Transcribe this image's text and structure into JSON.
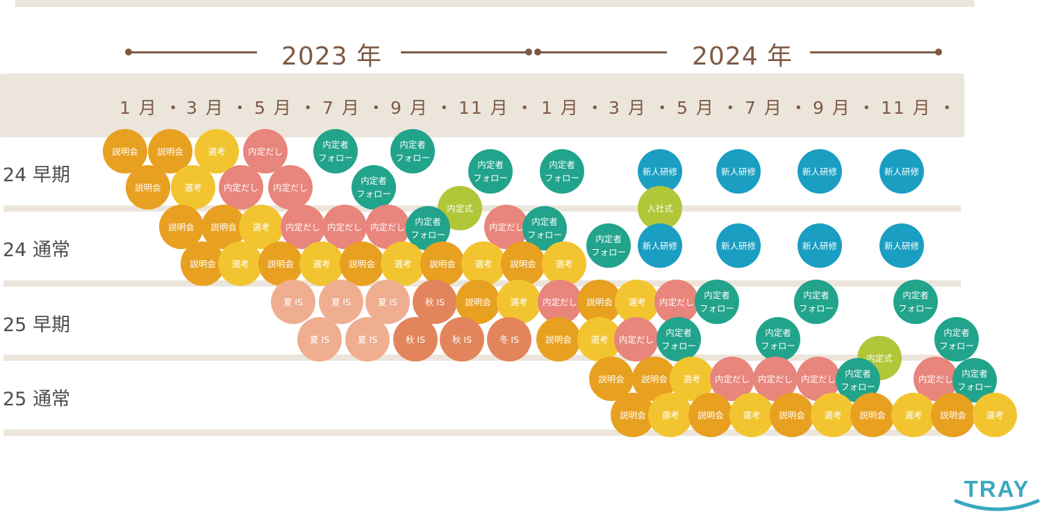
{
  "years": [
    "2023 年",
    "2024 年"
  ],
  "months": [
    "1 月 ・",
    "3 月 ・",
    "5 月 ・",
    "7 月 ・",
    "9 月 ・",
    "11 月 ・",
    "1 月 ・",
    "3 月 ・",
    "5 月 ・",
    "7 月 ・",
    "9 月 ・",
    "11 月 ・"
  ],
  "rows": [
    "24 早期",
    "24 通常",
    "25 早期",
    "25 通常"
  ],
  "logo": {
    "text": "TRAY",
    "color": "#3aa8c1"
  },
  "colors": {
    "setsumeikai": "#e8a020",
    "senko": "#f2c530",
    "naitei_dashi": "#e8857c",
    "follow": "#22a38c",
    "shikisiki": "#b2c63a",
    "kenshu": "#1a9ec2",
    "is_light": "#efae90",
    "is_dark": "#e3855c"
  },
  "bubbles": [
    {
      "t": "説明会",
      "c": "setsumeikai"
    },
    {
      "t": "説明会",
      "c": "setsumeikai"
    },
    {
      "t": "選考",
      "c": "senko"
    },
    {
      "t": "内定だし",
      "c": "naitei_dashi"
    },
    {
      "t": "説明会",
      "c": "setsumeikai"
    },
    {
      "t": "選考",
      "c": "senko"
    },
    {
      "t": "内定だし",
      "c": "naitei_dashi"
    },
    {
      "t": "内定だし",
      "c": "naitei_dashi"
    },
    {
      "t": "内定者\nフォロー",
      "c": "follow"
    },
    {
      "t": "内定者\nフォロー",
      "c": "follow"
    },
    {
      "t": "内定者\nフォロー",
      "c": "follow"
    },
    {
      "t": "内定者\nフォロー",
      "c": "follow"
    },
    {
      "t": "内定者\nフォロー",
      "c": "follow"
    },
    {
      "t": "内定式",
      "c": "shikisiki"
    },
    {
      "t": "新人研修",
      "c": "kenshu"
    },
    {
      "t": "新人研修",
      "c": "kenshu"
    },
    {
      "t": "新人研修",
      "c": "kenshu"
    },
    {
      "t": "新人研修",
      "c": "kenshu"
    },
    {
      "t": "入社式",
      "c": "shikisiki"
    },
    {
      "t": "説明会",
      "c": "setsumeikai"
    },
    {
      "t": "説明会",
      "c": "setsumeikai"
    },
    {
      "t": "選考",
      "c": "senko"
    },
    {
      "t": "内定だし",
      "c": "naitei_dashi"
    },
    {
      "t": "内定だし",
      "c": "naitei_dashi"
    },
    {
      "t": "内定だし",
      "c": "naitei_dashi"
    },
    {
      "t": "内定者\nフォロー",
      "c": "follow"
    },
    {
      "t": "内定だし",
      "c": "naitei_dashi"
    },
    {
      "t": "内定者\nフォロー",
      "c": "follow"
    },
    {
      "t": "内定者\nフォロー",
      "c": "follow"
    },
    {
      "t": "新人研修",
      "c": "kenshu"
    },
    {
      "t": "新人研修",
      "c": "kenshu"
    },
    {
      "t": "新人研修",
      "c": "kenshu"
    },
    {
      "t": "新人研修",
      "c": "kenshu"
    },
    {
      "t": "説明会",
      "c": "setsumeikai"
    },
    {
      "t": "選考",
      "c": "senko"
    },
    {
      "t": "説明会",
      "c": "setsumeikai"
    },
    {
      "t": "選考",
      "c": "senko"
    },
    {
      "t": "説明会",
      "c": "setsumeikai"
    },
    {
      "t": "選考",
      "c": "senko"
    },
    {
      "t": "説明会",
      "c": "setsumeikai"
    },
    {
      "t": "選考",
      "c": "senko"
    },
    {
      "t": "説明会",
      "c": "setsumeikai"
    },
    {
      "t": "選考",
      "c": "senko"
    },
    {
      "t": "夏 IS",
      "c": "is_light"
    },
    {
      "t": "夏 IS",
      "c": "is_light"
    },
    {
      "t": "夏 IS",
      "c": "is_light"
    },
    {
      "t": "秋 IS",
      "c": "is_dark"
    },
    {
      "t": "説明会",
      "c": "setsumeikai"
    },
    {
      "t": "選考",
      "c": "senko"
    },
    {
      "t": "内定だし",
      "c": "naitei_dashi"
    },
    {
      "t": "説明会",
      "c": "setsumeikai"
    },
    {
      "t": "選考",
      "c": "senko"
    },
    {
      "t": "内定だし",
      "c": "naitei_dashi"
    },
    {
      "t": "内定者\nフォロー",
      "c": "follow"
    },
    {
      "t": "内定者\nフォロー",
      "c": "follow"
    },
    {
      "t": "内定者\nフォロー",
      "c": "follow"
    },
    {
      "t": "夏 IS",
      "c": "is_light"
    },
    {
      "t": "夏 IS",
      "c": "is_light"
    },
    {
      "t": "秋 IS",
      "c": "is_dark"
    },
    {
      "t": "秋 IS",
      "c": "is_dark"
    },
    {
      "t": "冬 IS",
      "c": "is_dark"
    },
    {
      "t": "説明会",
      "c": "setsumeikai"
    },
    {
      "t": "選考",
      "c": "senko"
    },
    {
      "t": "内定だし",
      "c": "naitei_dashi"
    },
    {
      "t": "内定者\nフォロー",
      "c": "follow"
    },
    {
      "t": "内定者\nフォロー",
      "c": "follow"
    },
    {
      "t": "内定者\nフォロー",
      "c": "follow"
    },
    {
      "t": "内定式",
      "c": "shikisiki"
    },
    {
      "t": "説明会",
      "c": "setsumeikai"
    },
    {
      "t": "説明会",
      "c": "setsumeikai"
    },
    {
      "t": "選考",
      "c": "senko"
    },
    {
      "t": "内定だし",
      "c": "naitei_dashi"
    },
    {
      "t": "内定だし",
      "c": "naitei_dashi"
    },
    {
      "t": "内定だし",
      "c": "naitei_dashi"
    },
    {
      "t": "内定者\nフォロー",
      "c": "follow"
    },
    {
      "t": "内定だし",
      "c": "naitei_dashi"
    },
    {
      "t": "内定者\nフォロー",
      "c": "follow"
    },
    {
      "t": "説明会",
      "c": "setsumeikai"
    },
    {
      "t": "選考",
      "c": "senko"
    },
    {
      "t": "説明会",
      "c": "setsumeikai"
    },
    {
      "t": "選考",
      "c": "senko"
    },
    {
      "t": "説明会",
      "c": "setsumeikai"
    },
    {
      "t": "選考",
      "c": "senko"
    },
    {
      "t": "説明会",
      "c": "setsumeikai"
    },
    {
      "t": "選考",
      "c": "senko"
    },
    {
      "t": "説明会",
      "c": "setsumeikai"
    },
    {
      "t": "選考",
      "c": "senko"
    }
  ]
}
